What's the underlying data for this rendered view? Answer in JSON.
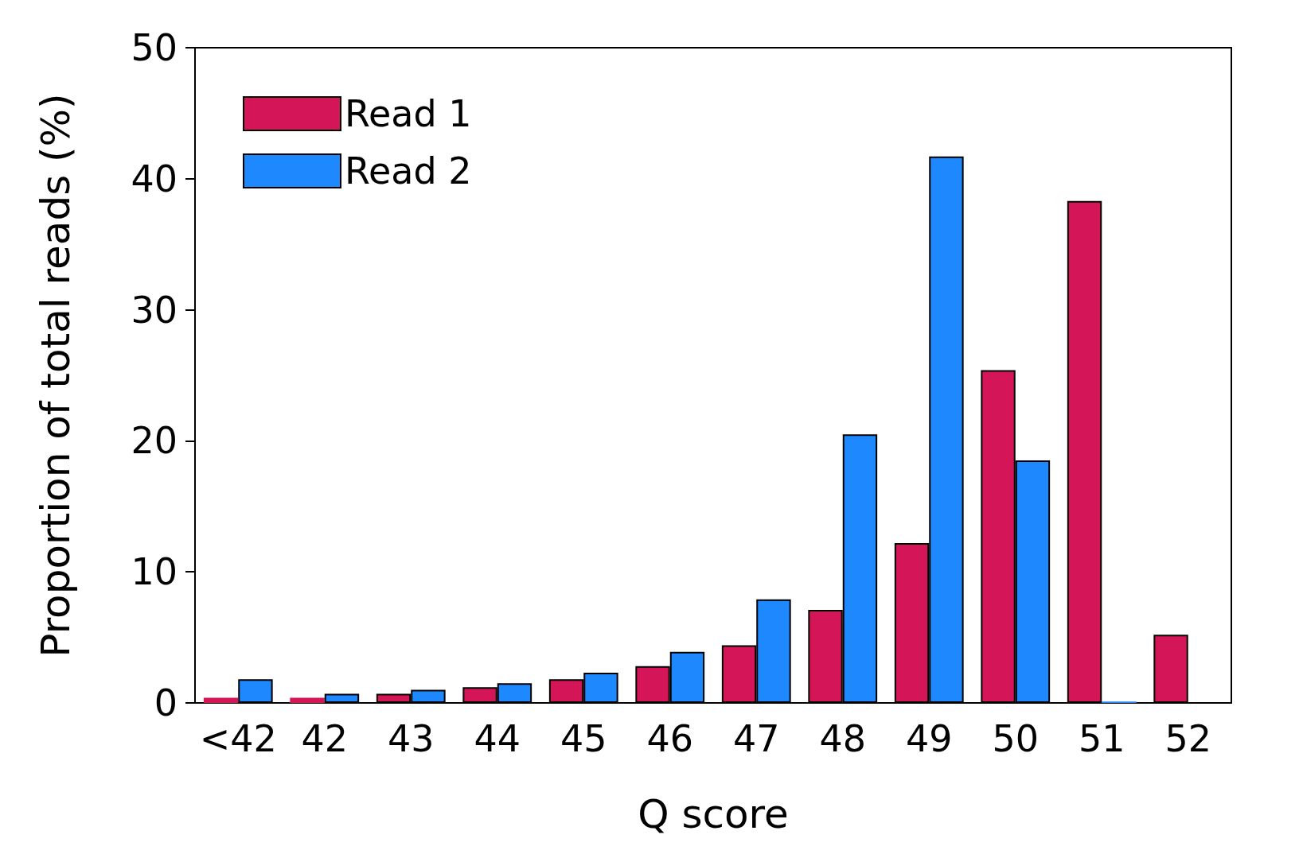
{
  "chart_data": {
    "type": "bar",
    "xlabel": "Q score",
    "ylabel": "Proportion of total reads (%)",
    "categories": [
      "<42",
      "42",
      "43",
      "44",
      "45",
      "46",
      "47",
      "48",
      "49",
      "50",
      "51",
      "52"
    ],
    "series": [
      {
        "name": "Read 1",
        "color": "#d41558",
        "values": [
          0.4,
          0.4,
          0.7,
          1.2,
          1.8,
          2.8,
          4.4,
          7.1,
          12.2,
          25.4,
          38.3,
          5.2
        ]
      },
      {
        "name": "Read 2",
        "color": "#1e88ff",
        "values": [
          1.8,
          0.7,
          1.0,
          1.5,
          2.3,
          3.9,
          7.9,
          20.5,
          41.7,
          18.5,
          0.1,
          0
        ]
      }
    ],
    "ylim": [
      0,
      50
    ],
    "yticks": [
      0,
      10,
      20,
      30,
      40,
      50
    ],
    "grid": false,
    "legend": "top left"
  }
}
